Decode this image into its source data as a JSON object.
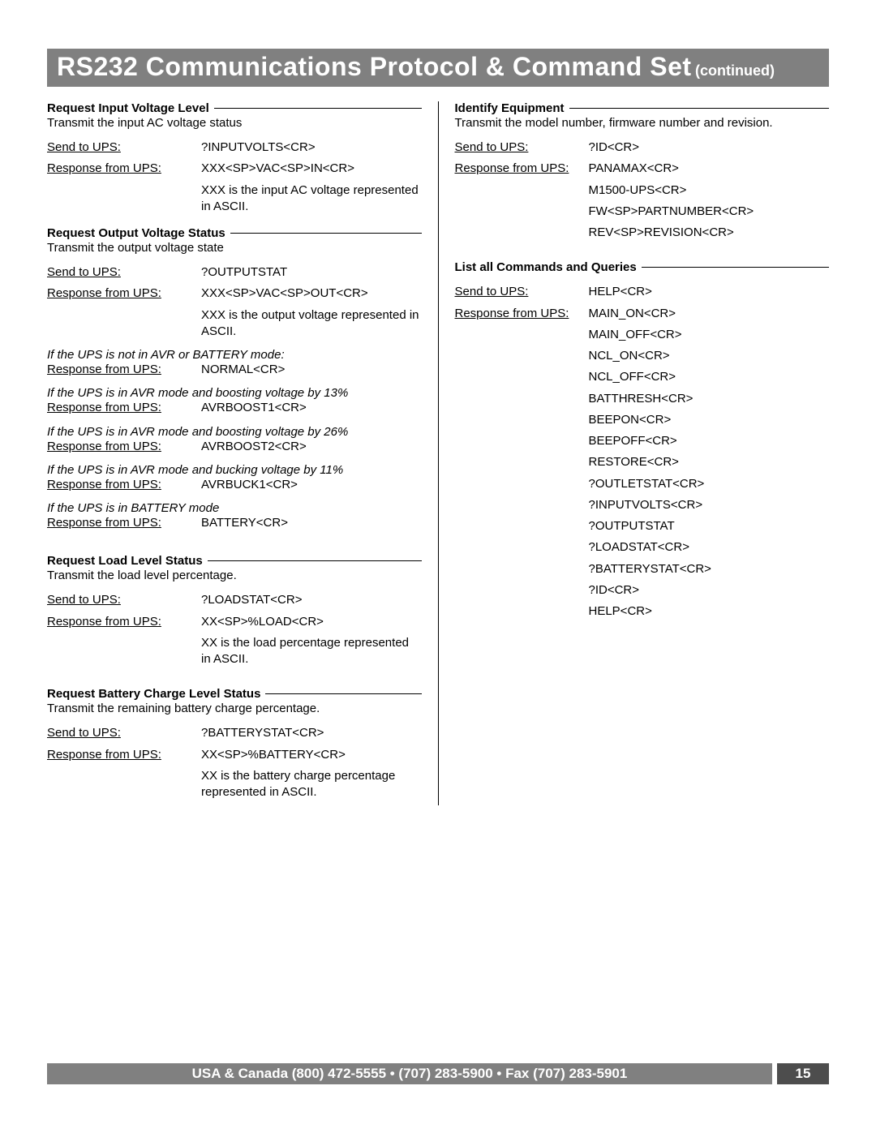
{
  "header": {
    "title_main": "RS232 Communications Protocol & Command Set",
    "title_sub": "(continued)"
  },
  "footer": {
    "text": "USA & Canada (800) 472-5555  •  (707) 283-5900  •  Fax (707) 283-5901",
    "page_number": "15"
  },
  "left": {
    "sec1": {
      "title": "Request Input Voltage Level",
      "desc": "Transmit the input AC voltage status",
      "send_k": "Send to UPS:",
      "send_v": "?INPUTVOLTS<CR>",
      "resp_k": "Response from UPS:",
      "resp_v": "XXX<SP>VAC<SP>IN<CR>",
      "note": "XXX is the input AC voltage represented in ASCII."
    },
    "sec2": {
      "title": "Request Output Voltage Status",
      "desc": "Transmit the output voltage state",
      "send_k": "Send to UPS:",
      "send_v": "?OUTPUTSTAT",
      "resp_k": "Response from UPS:",
      "resp_v": "XXX<SP>VAC<SP>OUT<CR>",
      "note": "XXX is the output voltage represented in ASCII.",
      "c1_i": "If the UPS is not in AVR or BATTERY mode:",
      "c1_k": "Response from UPS:",
      "c1_v": "NORMAL<CR>",
      "c2_i": "If the UPS is in AVR mode and boosting voltage by 13%",
      "c2_k": "Response from UPS:",
      "c2_v": "AVRBOOST1<CR>",
      "c3_i": "If the UPS is in AVR mode and boosting voltage by 26%",
      "c3_k": "Response from UPS:",
      "c3_v": "AVRBOOST2<CR>",
      "c4_i": "If the UPS is in AVR mode and bucking voltage by 11%",
      "c4_k": "Response from UPS:",
      "c4_v": "AVRBUCK1<CR>",
      "c5_i": "If the UPS is in BATTERY mode",
      "c5_k": "Response from UPS:",
      "c5_v": "BATTERY<CR>"
    },
    "sec3": {
      "title": "Request Load Level Status",
      "desc": "Transmit the load level percentage.",
      "send_k": "Send to UPS:",
      "send_v": "?LOADSTAT<CR>",
      "resp_k": "Response from UPS:",
      "resp_v": "XX<SP>%LOAD<CR>",
      "note": "XX is the load percentage represented in ASCII."
    },
    "sec4": {
      "title": "Request Battery Charge Level Status",
      "desc": "Transmit the remaining battery charge percentage.",
      "send_k": "Send to UPS:",
      "send_v": "?BATTERYSTAT<CR>",
      "resp_k": "Response from UPS:",
      "resp_v": "XX<SP>%BATTERY<CR>",
      "note": "XX is the battery charge percentage represented in ASCII."
    }
  },
  "right": {
    "sec1": {
      "title": "Identify Equipment",
      "desc": "Transmit the model number, firmware number and revision.",
      "send_k": "Send to UPS:",
      "send_v": "?ID<CR>",
      "resp_k": "Response from UPS:",
      "r1": "PANAMAX<CR>",
      "r2": "M1500-UPS<CR>",
      "r3": "FW<SP>PARTNUMBER<CR>",
      "r4": "REV<SP>REVISION<CR>"
    },
    "sec2": {
      "title": "List all Commands and Queries",
      "send_k": "Send to UPS:",
      "send_v": "HELP<CR>",
      "resp_k": "Response from UPS:",
      "list": [
        "MAIN_ON<CR>",
        "MAIN_OFF<CR>",
        "NCL_ON<CR>",
        "NCL_OFF<CR>",
        "BATTHRESH<CR>",
        "BEEPON<CR>",
        "BEEPOFF<CR>",
        "RESTORE<CR>",
        "?OUTLETSTAT<CR>",
        "?INPUTVOLTS<CR>",
        "?OUTPUTSTAT",
        "?LOADSTAT<CR>",
        "?BATTERYSTAT<CR>",
        "?ID<CR>",
        "HELP<CR>"
      ]
    }
  }
}
